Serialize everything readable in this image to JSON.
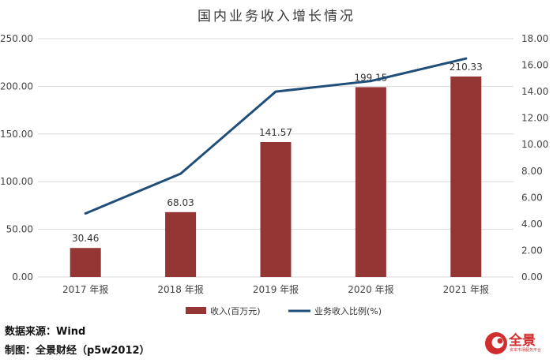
{
  "chart_data": {
    "type": "bar",
    "title": "国内业务收入增长情况",
    "categories": [
      "2017 年报",
      "2018 年报",
      "2019 年报",
      "2020 年报",
      "2021 年报"
    ],
    "series": [
      {
        "name": "收入(百万元)",
        "type": "bar",
        "axis": "left",
        "color": "#943634",
        "values": [
          30.46,
          68.03,
          141.57,
          199.15,
          210.33
        ],
        "labels": [
          "30.46",
          "68.03",
          "141.57",
          "199.15",
          "210.33"
        ]
      },
      {
        "name": "业务收入比例(%)",
        "type": "line",
        "axis": "right",
        "color": "#1f4e79",
        "values": [
          4.8,
          7.8,
          14.0,
          14.8,
          16.5
        ]
      }
    ],
    "y_left": {
      "min": 0,
      "max": 250,
      "step": 50,
      "ticks": [
        "0.00",
        "50.00",
        "100.00",
        "150.00",
        "200.00",
        "250.00"
      ]
    },
    "y_right": {
      "min": 0,
      "max": 18,
      "step": 2,
      "ticks": [
        "0.00",
        "2.00",
        "4.00",
        "6.00",
        "8.00",
        "10.00",
        "12.00",
        "14.00",
        "16.00",
        "18.00"
      ]
    },
    "grid": true,
    "legend": "bottom-center"
  },
  "footer": {
    "source": "数据来源：Wind",
    "maker": "制图：全景财经（p5w2012）"
  },
  "logo": {
    "name": "全景",
    "sub": "资本市场服务平台",
    "color": "#d12d2f"
  }
}
